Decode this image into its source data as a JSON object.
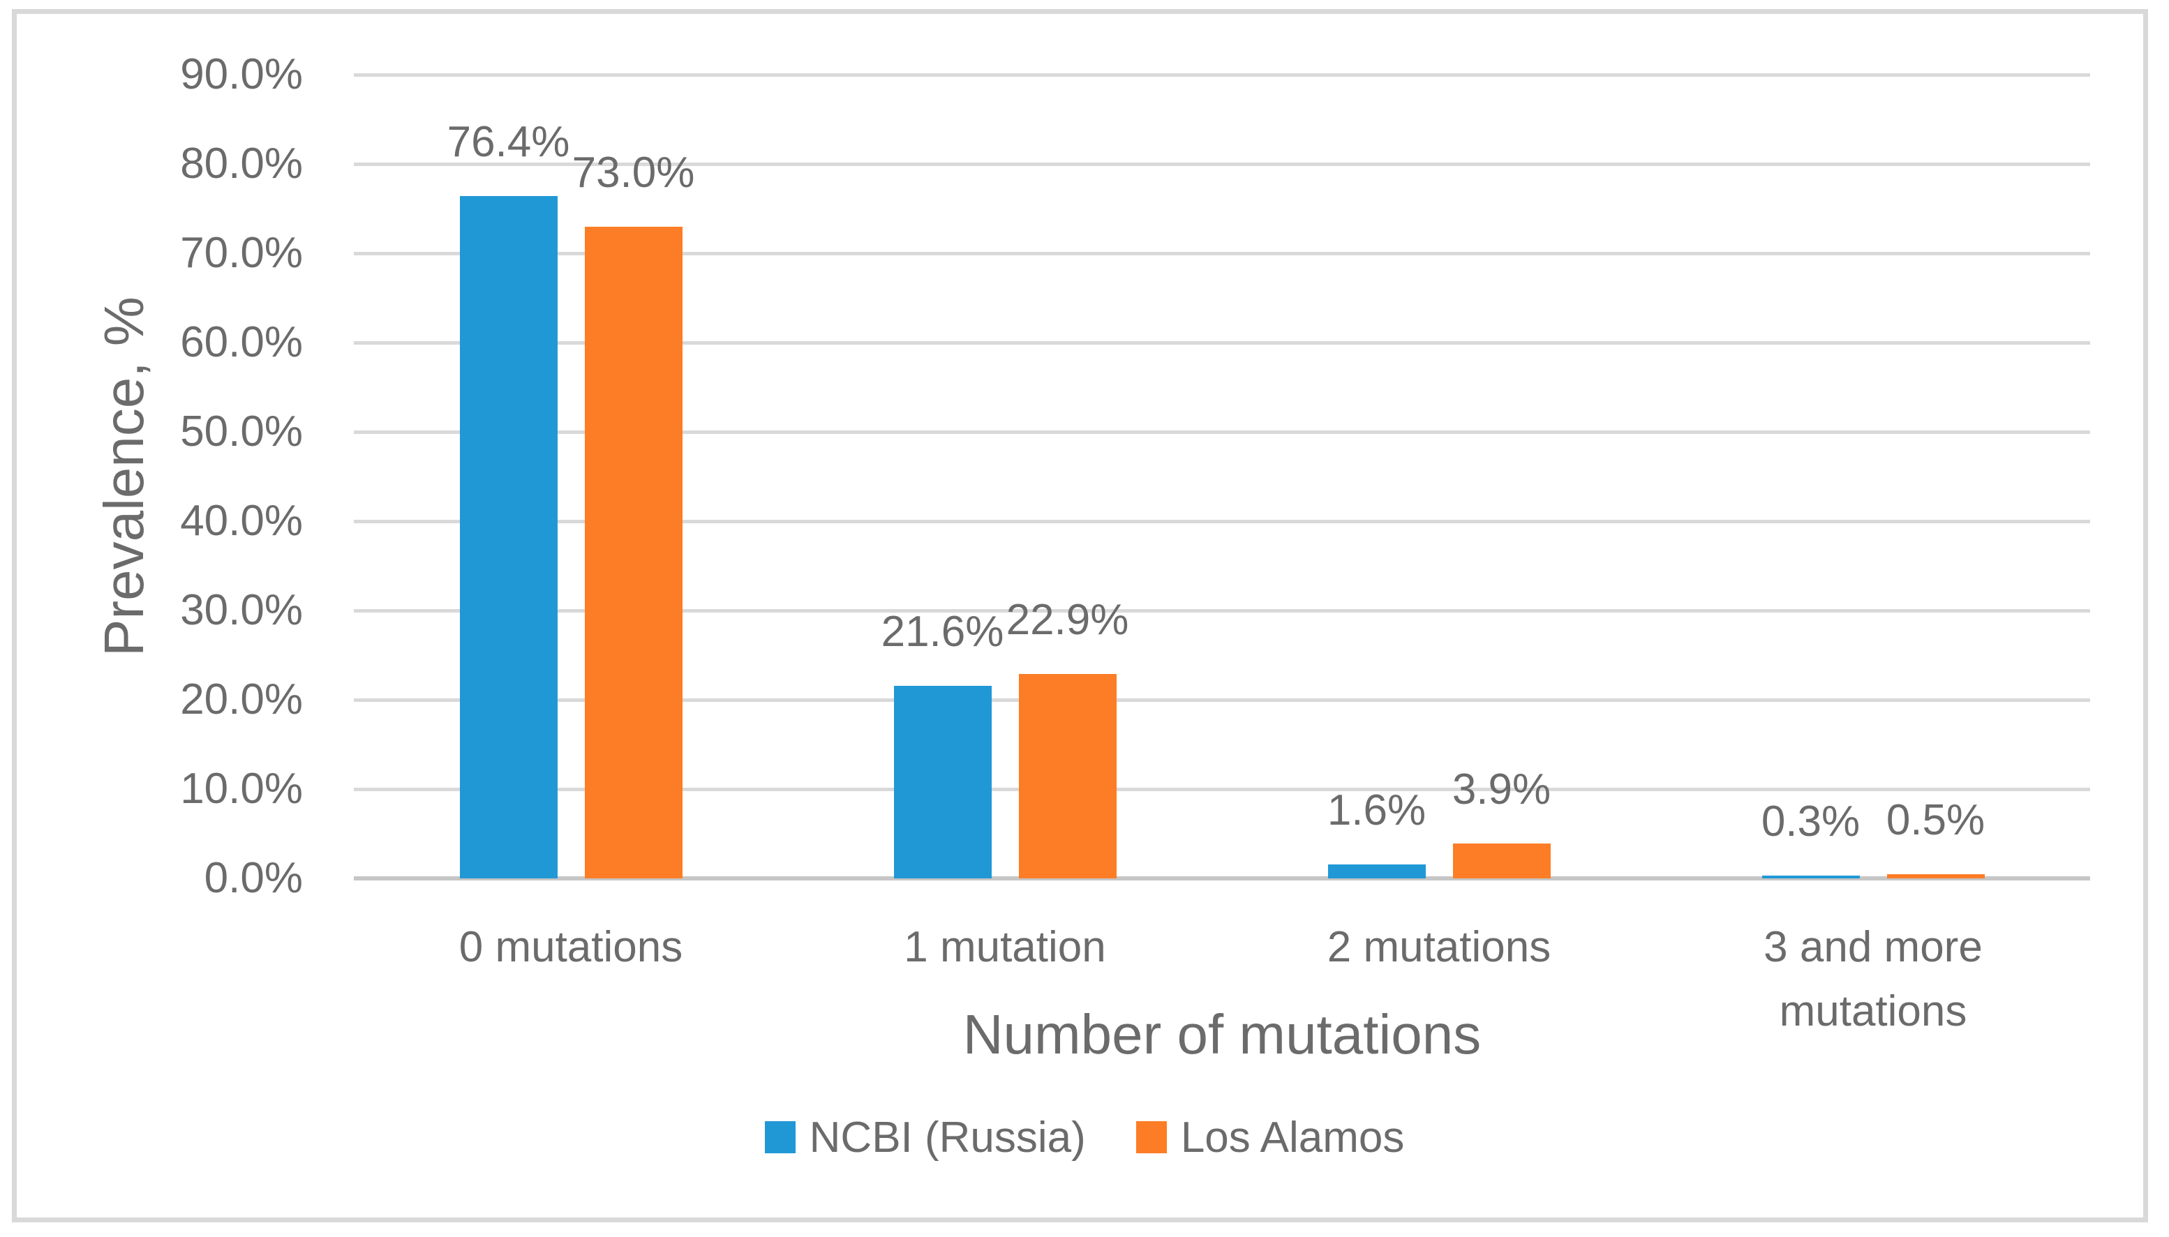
{
  "colors": {
    "background": "#ffffff",
    "border": "#d9d9d9",
    "gridline": "#d9d9d9",
    "axis_line": "#c6c6c6",
    "text": "#6b6b6b",
    "series_blue": "#2098d6",
    "series_orange": "#fc7d26"
  },
  "chart_data": {
    "type": "bar",
    "title": "",
    "xlabel": "Number of mutations",
    "ylabel": "Prevalence, %",
    "ylim": [
      0,
      90
    ],
    "ytick_step": 10,
    "grid": true,
    "legend_position": "bottom",
    "ytick_labels": [
      "0.0%",
      "10.0%",
      "20.0%",
      "30.0%",
      "40.0%",
      "50.0%",
      "60.0%",
      "70.0%",
      "80.0%",
      "90.0%"
    ],
    "categories": [
      "0 mutations",
      "1 mutation",
      "2 mutations",
      "3 and more mutations"
    ],
    "category_lines": [
      [
        "0 mutations"
      ],
      [
        "1 mutation"
      ],
      [
        "2 mutations"
      ],
      [
        "3 and more",
        "mutations"
      ]
    ],
    "series": [
      {
        "name": "NCBI (Russia)",
        "color": "#2098d6",
        "values": [
          76.4,
          21.6,
          1.6,
          0.3
        ],
        "labels": [
          "76.4%",
          "21.6%",
          "1.6%",
          "0.3%"
        ]
      },
      {
        "name": "Los Alamos",
        "color": "#fc7d26",
        "values": [
          73.0,
          22.9,
          3.9,
          0.5
        ],
        "labels": [
          "73.0%",
          "22.9%",
          "3.9%",
          "0.5%"
        ]
      }
    ]
  }
}
